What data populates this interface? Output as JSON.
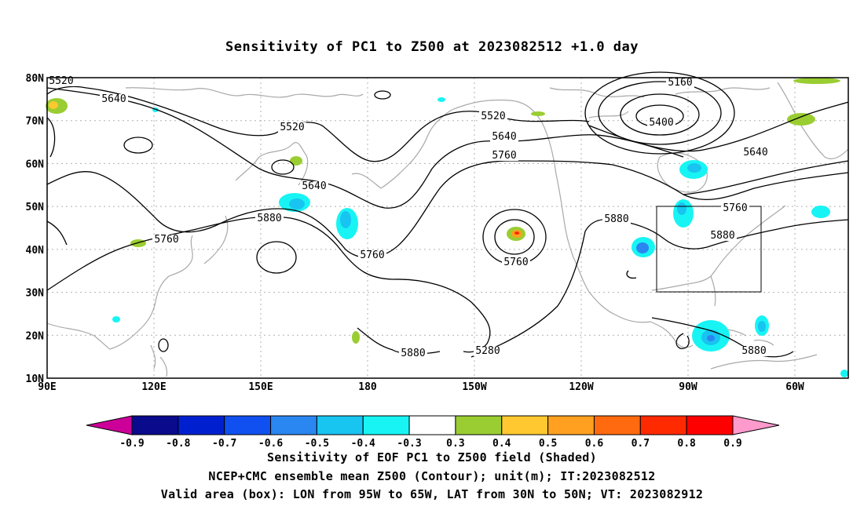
{
  "title": "Sensitivity of PC1 to Z500 at 2023082512 +1.0 day",
  "lat_labels": [
    "80N",
    "70N",
    "60N",
    "50N",
    "40N",
    "30N",
    "20N",
    "10N"
  ],
  "lon_labels": [
    "90E",
    "120E",
    "150E",
    "180",
    "150W",
    "120W",
    "90W",
    "60W"
  ],
  "contour_labels": [
    "5520",
    "5640",
    "5520",
    "5640",
    "5880",
    "5760",
    "5760",
    "5520",
    "5640",
    "5760",
    "5760",
    "5880",
    "5880",
    "5280",
    "5160",
    "5400",
    "5640",
    "5760",
    "5880",
    "5880"
  ],
  "colorbar": {
    "labels": [
      "-0.9",
      "-0.8",
      "-0.7",
      "-0.6",
      "-0.5",
      "-0.4",
      "-0.3",
      "0.3",
      "0.4",
      "0.5",
      "0.6",
      "0.7",
      "0.8",
      "0.9"
    ],
    "colors": [
      "#0a0a8c",
      "#0020d0",
      "#1050f0",
      "#2a86f0",
      "#18c4f0",
      "#18f4f4",
      "#ffffff",
      "#9acd32",
      "#ffc830",
      "#ffa020",
      "#ff6a10",
      "#ff2a00",
      "#ff0000"
    ],
    "left_end_color": "#cc0099",
    "right_end_color": "#ff9acd"
  },
  "captions": {
    "line1": "Sensitivity of EOF PC1 to Z500 field (Shaded)",
    "line2": "NCEP+CMC ensemble mean Z500 (Contour); unit(m); IT:2023082512",
    "line3": "Valid area (box): LON from 95W to 65W, LAT from 30N to 50N; VT: 2023082912"
  },
  "valid_area": {
    "lon_min": "95W",
    "lon_max": "65W",
    "lat_min": "30N",
    "lat_max": "50N"
  },
  "colors": {
    "contour": "#000000",
    "coast": "#a9a9a9",
    "grid": "#b0b0b0"
  }
}
